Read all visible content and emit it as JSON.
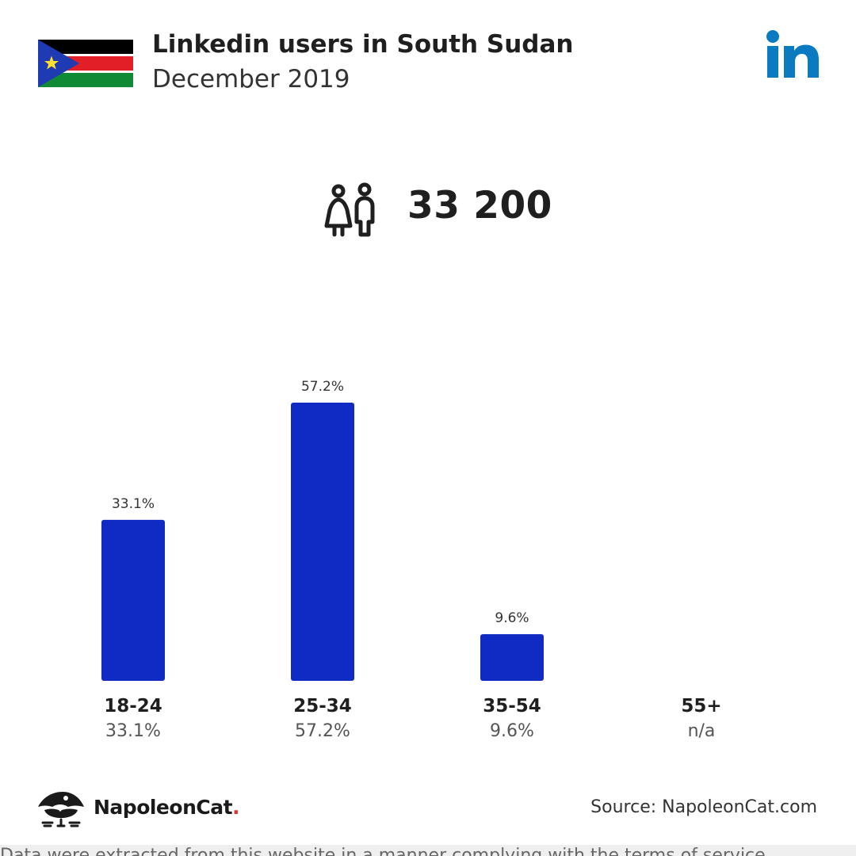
{
  "header": {
    "title": "Linkedin users in South Sudan",
    "subtitle": "December 2019"
  },
  "flag": {
    "colors": {
      "black": "#000000",
      "red": "#e21e26",
      "green": "#118a35",
      "white": "#ffffff",
      "blue": "#1f3bb3",
      "star": "#ffe02b"
    }
  },
  "total": {
    "value": "33 200",
    "icon": "people-icon"
  },
  "colors": {
    "bar": "#102bc4",
    "linkedin": "#0a7bc1"
  },
  "chart_data": {
    "type": "bar",
    "categories": [
      "18-24",
      "25-34",
      "35-54",
      "55+"
    ],
    "values": [
      33.1,
      57.2,
      9.6,
      null
    ],
    "value_labels": [
      "33.1%",
      "57.2%",
      "9.6%",
      "n/a"
    ],
    "ylim": [
      0,
      57.2
    ],
    "grid": false,
    "legend": "none"
  },
  "footer": {
    "brand_name": "NapoleonCat",
    "brand_dot": ".",
    "source": "Source: NapoleonCat.com",
    "bottom_text": "Data were extracted from this website in a manner complying with the terms of service"
  }
}
